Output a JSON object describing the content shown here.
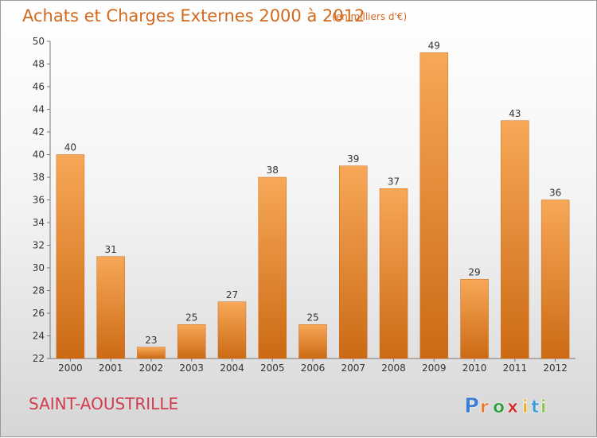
{
  "title": "Achats et Charges Externes 2000 à 2012",
  "unit": "(en milliers d'€)",
  "commune": "SAINT-AOUSTRILLE",
  "logo": {
    "letters": [
      "P",
      "r",
      "o",
      "x",
      "i",
      "t",
      "i"
    ],
    "colors": [
      "#3a7bd5",
      "#e8762c",
      "#2e9b3e",
      "#d62b2b",
      "#e8b020",
      "#3a9bd5",
      "#8bc34a"
    ]
  },
  "colors": {
    "bar_top": "#f7a857",
    "bar_bottom": "#cc6a14",
    "title": "#d2691e",
    "commune": "#d23c4f"
  },
  "chart_data": {
    "type": "bar",
    "title": "Achats et Charges Externes 2000 à 2012",
    "categories": [
      "2000",
      "2001",
      "2002",
      "2003",
      "2004",
      "2005",
      "2006",
      "2007",
      "2008",
      "2009",
      "2010",
      "2011",
      "2012"
    ],
    "values": [
      40,
      31,
      23,
      25,
      27,
      38,
      25,
      39,
      37,
      49,
      29,
      43,
      36
    ],
    "ylim": [
      22,
      50
    ],
    "yticks": [
      22,
      24,
      26,
      28,
      30,
      32,
      34,
      36,
      38,
      40,
      42,
      44,
      46,
      48,
      50
    ],
    "grid": false,
    "xlabel": "",
    "ylabel": ""
  }
}
